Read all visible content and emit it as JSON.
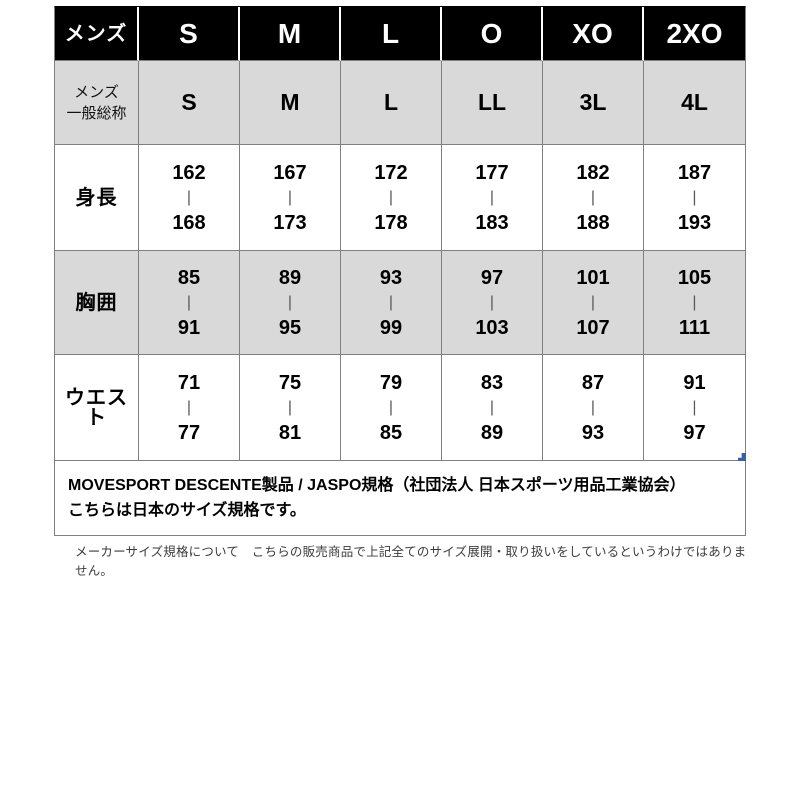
{
  "table": {
    "header": {
      "label": "メンズ",
      "sizes": [
        "S",
        "M",
        "L",
        "O",
        "XO",
        "2XO"
      ]
    },
    "alias": {
      "label_line1": "メンズ",
      "label_line2": "一般総称",
      "values": [
        "S",
        "M",
        "L",
        "LL",
        "3L",
        "4L"
      ]
    },
    "range_separator": "|",
    "rows": [
      {
        "label": "身長",
        "cells": [
          {
            "top": "162",
            "bottom": "168"
          },
          {
            "top": "167",
            "bottom": "173"
          },
          {
            "top": "172",
            "bottom": "178"
          },
          {
            "top": "177",
            "bottom": "183"
          },
          {
            "top": "182",
            "bottom": "188"
          },
          {
            "top": "187",
            "bottom": "193"
          }
        ]
      },
      {
        "label": "胸囲",
        "cells": [
          {
            "top": "85",
            "bottom": "91"
          },
          {
            "top": "89",
            "bottom": "95"
          },
          {
            "top": "93",
            "bottom": "99"
          },
          {
            "top": "97",
            "bottom": "103"
          },
          {
            "top": "101",
            "bottom": "107"
          },
          {
            "top": "105",
            "bottom": "111"
          }
        ]
      },
      {
        "label": "ウエスト",
        "cells": [
          {
            "top": "71",
            "bottom": "77"
          },
          {
            "top": "75",
            "bottom": "81"
          },
          {
            "top": "79",
            "bottom": "85"
          },
          {
            "top": "83",
            "bottom": "89"
          },
          {
            "top": "87",
            "bottom": "93"
          },
          {
            "top": "91",
            "bottom": "97"
          }
        ]
      }
    ]
  },
  "footer": {
    "line1": "MOVESPORT DESCENTE製品 / JASPO規格（社団法人 日本スポーツ用品工業協会）",
    "line2": "こちらは日本のサイズ規格です。"
  },
  "disclaimer": "メーカーサイズ規格について　こちらの販売商品で上記全てのサイズ展開・取り扱いをしているというわけではありません。",
  "colors": {
    "header_bg": "#000000",
    "header_text": "#ffffff",
    "stripe_bg": "#d9d9d9",
    "border": "#808080",
    "marker": "#3b5fa3"
  },
  "chart_data": {
    "type": "table",
    "title": "メンズ サイズ規格表",
    "columns": [
      "メンズ",
      "S",
      "M",
      "L",
      "O",
      "XO",
      "2XO"
    ],
    "rows": [
      [
        "メンズ一般総称",
        "S",
        "M",
        "L",
        "LL",
        "3L",
        "4L"
      ],
      [
        "身長",
        "162-168",
        "167-173",
        "172-178",
        "177-183",
        "182-188",
        "187-193"
      ],
      [
        "胸囲",
        "85-91",
        "89-95",
        "93-99",
        "97-103",
        "101-107",
        "105-111"
      ],
      [
        "ウエスト",
        "71-77",
        "75-81",
        "79-85",
        "83-89",
        "87-93",
        "91-97"
      ]
    ],
    "notes": [
      "MOVESPORT DESCENTE製品 / JASPO規格（社団法人 日本スポーツ用品工業協会）",
      "こちらは日本のサイズ規格です。",
      "メーカーサイズ規格について　こちらの販売商品で上記全てのサイズ展開・取り扱いをしているというわけではありません。"
    ]
  }
}
